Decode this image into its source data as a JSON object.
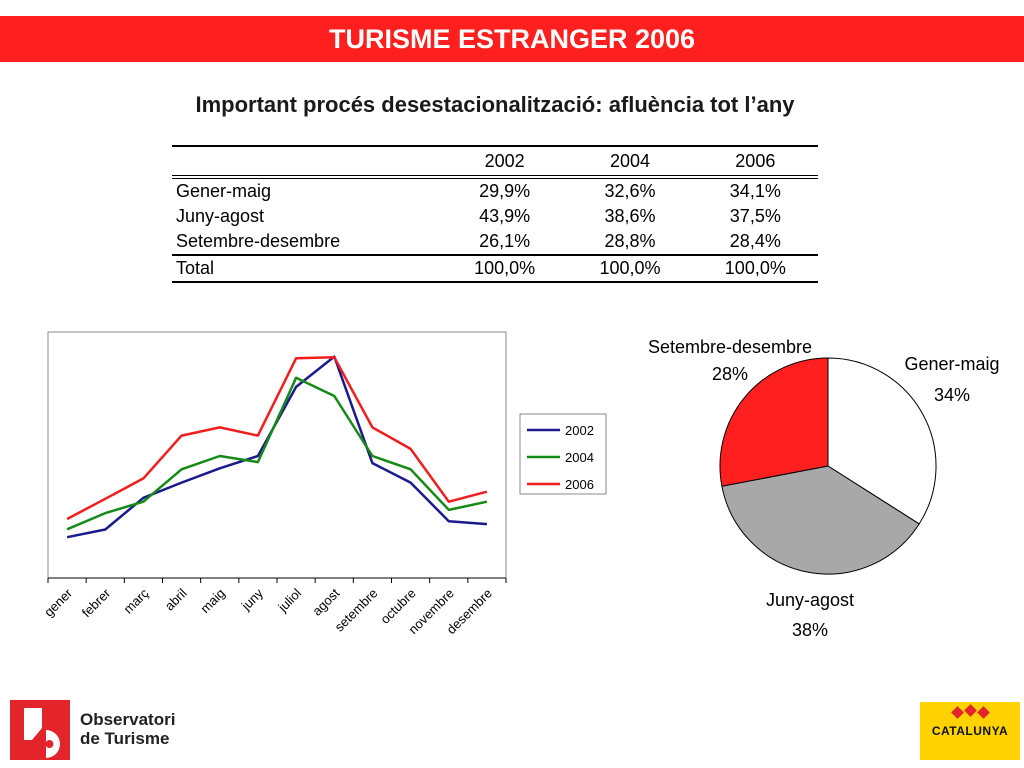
{
  "header": {
    "title": "TURISME ESTRANGER 2006"
  },
  "subtitle": "Important procés desestacionalització: afluència tot l’any",
  "table": {
    "columns": [
      "",
      "2002",
      "2004",
      "2006"
    ],
    "rows": [
      {
        "label": "Gener-maig",
        "values": [
          "29,9%",
          "32,6%",
          "34,1%"
        ]
      },
      {
        "label": "Juny-agost",
        "values": [
          "43,9%",
          "38,6%",
          "37,5%"
        ]
      },
      {
        "label": "Setembre-desembre",
        "values": [
          "26,1%",
          "28,8%",
          "28,4%"
        ]
      }
    ],
    "total": {
      "label": "Total",
      "values": [
        "100,0%",
        "100,0%",
        "100,0%"
      ]
    }
  },
  "chart_data": [
    {
      "type": "line",
      "title": "",
      "xlabel": "",
      "ylabel": "",
      "categories": [
        "gener",
        "febrer",
        "març",
        "abril",
        "maig",
        "juny",
        "juliol",
        "agost",
        "setembre",
        "octubre",
        "novembre",
        "desembre"
      ],
      "ylim": [
        0,
        100
      ],
      "y_ticks_shown": false,
      "grid": false,
      "legend": "right",
      "series": [
        {
          "name": "2002",
          "color": "#1a1a8c",
          "values": [
            16.6,
            19.7,
            32.6,
            38.8,
            44.6,
            49.6,
            77.7,
            90.0,
            46.7,
            38.8,
            23.1,
            21.9
          ]
        },
        {
          "name": "2004",
          "color": "#168a16",
          "values": [
            19.8,
            26.4,
            31.0,
            44.2,
            49.6,
            47.1,
            81.4,
            74.0,
            49.6,
            44.2,
            27.7,
            31.0
          ]
        },
        {
          "name": "2006",
          "color": "#f01e1e",
          "values": [
            24.0,
            32.2,
            40.5,
            57.9,
            61.2,
            57.9,
            89.3,
            89.7,
            61.2,
            52.5,
            31.0,
            35.1
          ]
        }
      ]
    },
    {
      "type": "pie",
      "title": "",
      "legend": "none",
      "slices": [
        {
          "label": "Gener-maig",
          "value": 34,
          "value_label": "34%",
          "color": "#ffffff"
        },
        {
          "label": "Juny-agost",
          "value": 38,
          "value_label": "38%",
          "color": "#a8a8a8"
        },
        {
          "label": "Setembre-desembre",
          "value": 28,
          "value_label": "28%",
          "color": "#ff1f1f"
        }
      ]
    }
  ],
  "footer": {
    "left_logo": {
      "line1": "Observatori",
      "line2": "de Turisme",
      "icon": "observatori-logo-icon"
    },
    "right_logo": {
      "text": "CATALUNYA",
      "icon": "catalunya-logo-icon"
    }
  }
}
